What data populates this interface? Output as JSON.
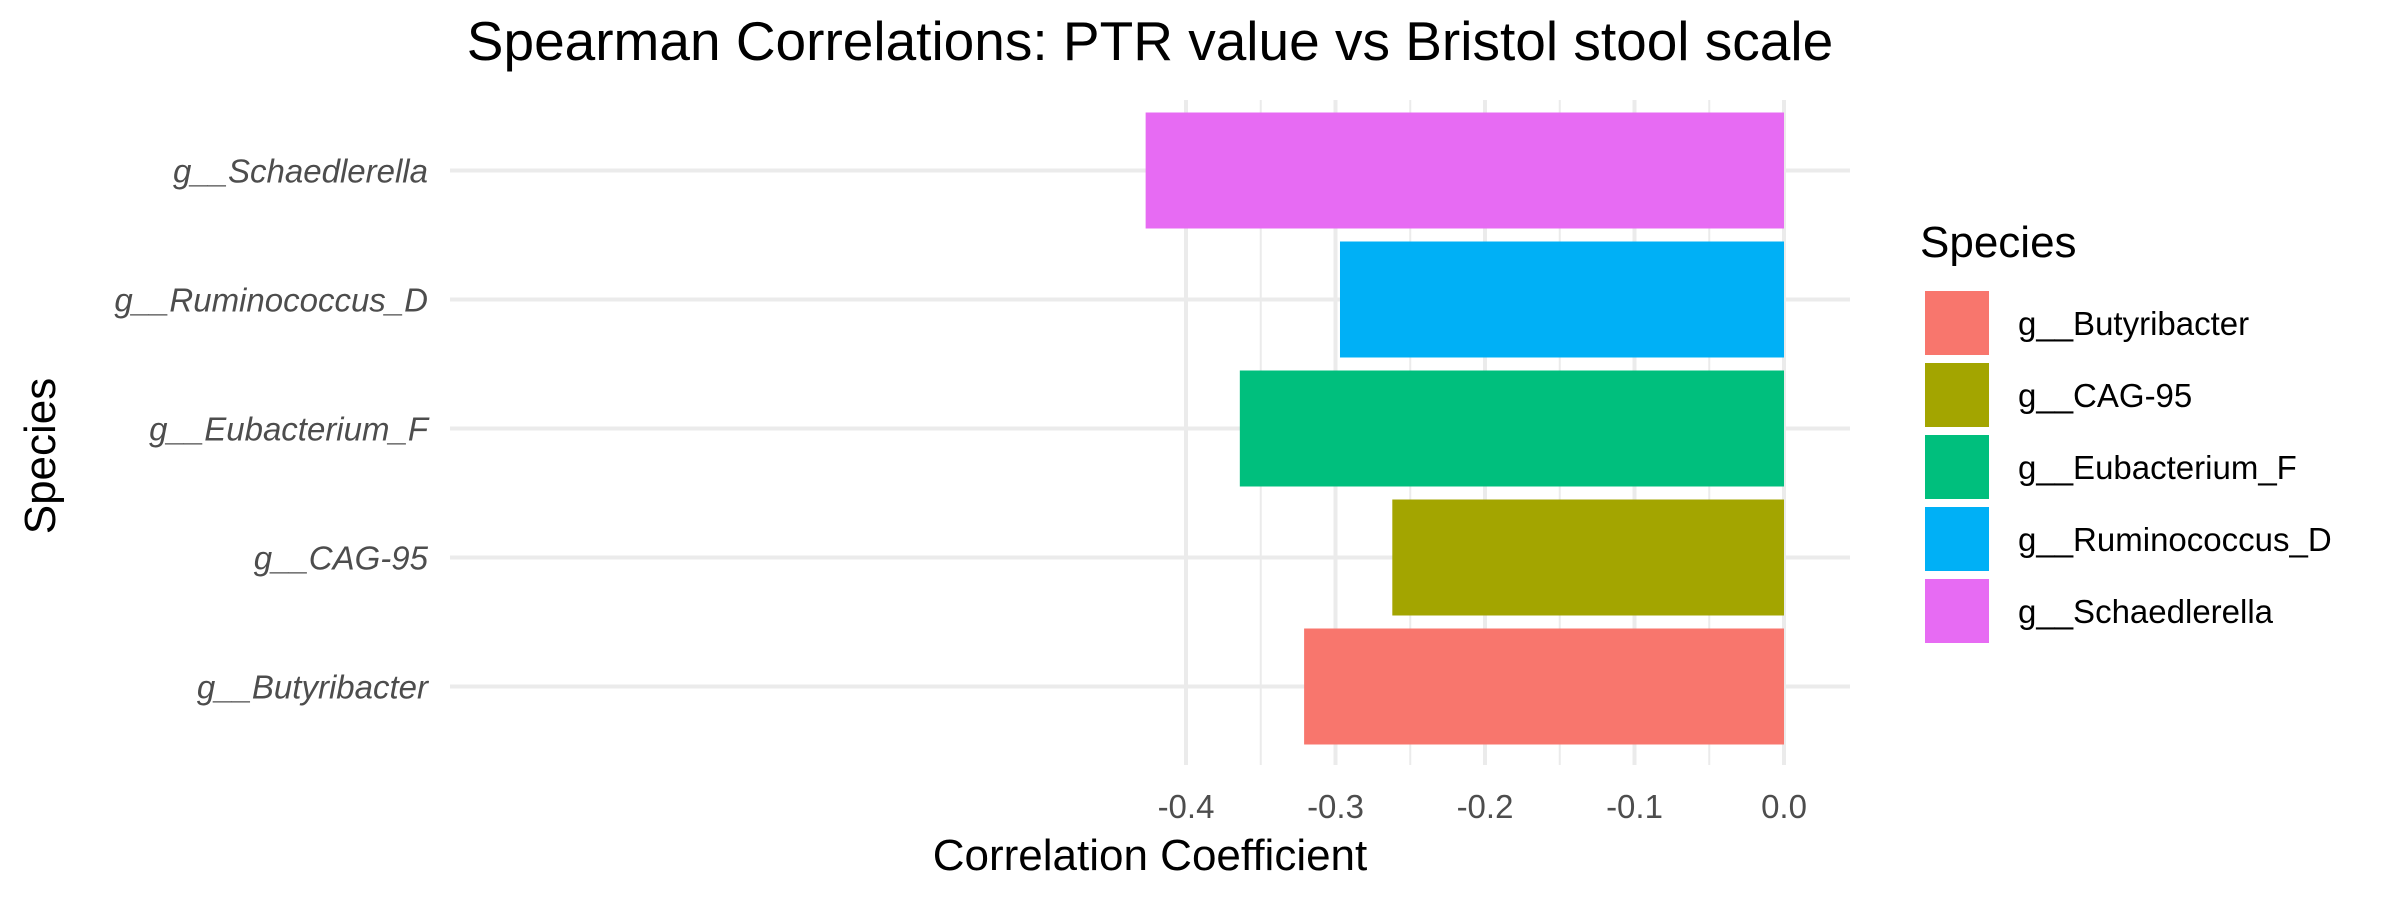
{
  "chart_data": {
    "type": "bar",
    "orientation": "horizontal",
    "title": "Spearman Correlations: PTR value vs Bristol stool scale",
    "xlabel": "Correlation Coefficient",
    "ylabel": "Species",
    "xlim": [
      -0.44,
      0.005
    ],
    "xticks": [
      -0.4,
      -0.3,
      -0.2,
      -0.1,
      0.0
    ],
    "xtick_labels": [
      "-0.4",
      "-0.3",
      "-0.2",
      "-0.1",
      "0.0"
    ],
    "categories": [
      "g__Butyribacter",
      "g__CAG-95",
      "g__Eubacterium_F",
      "g__Ruminococcus_D",
      "g__Schaedlerella"
    ],
    "values": [
      -0.321,
      -0.262,
      -0.364,
      -0.297,
      -0.427
    ],
    "colors": [
      "#F8766D",
      "#A3A500",
      "#00BF7D",
      "#00B0F6",
      "#E76BF3"
    ],
    "grid": true,
    "legend": {
      "title": "Species",
      "position": "right",
      "entries": [
        "g__Butyribacter",
        "g__CAG-95",
        "g__Eubacterium_F",
        "g__Ruminococcus_D",
        "g__Schaedlerella"
      ]
    }
  }
}
